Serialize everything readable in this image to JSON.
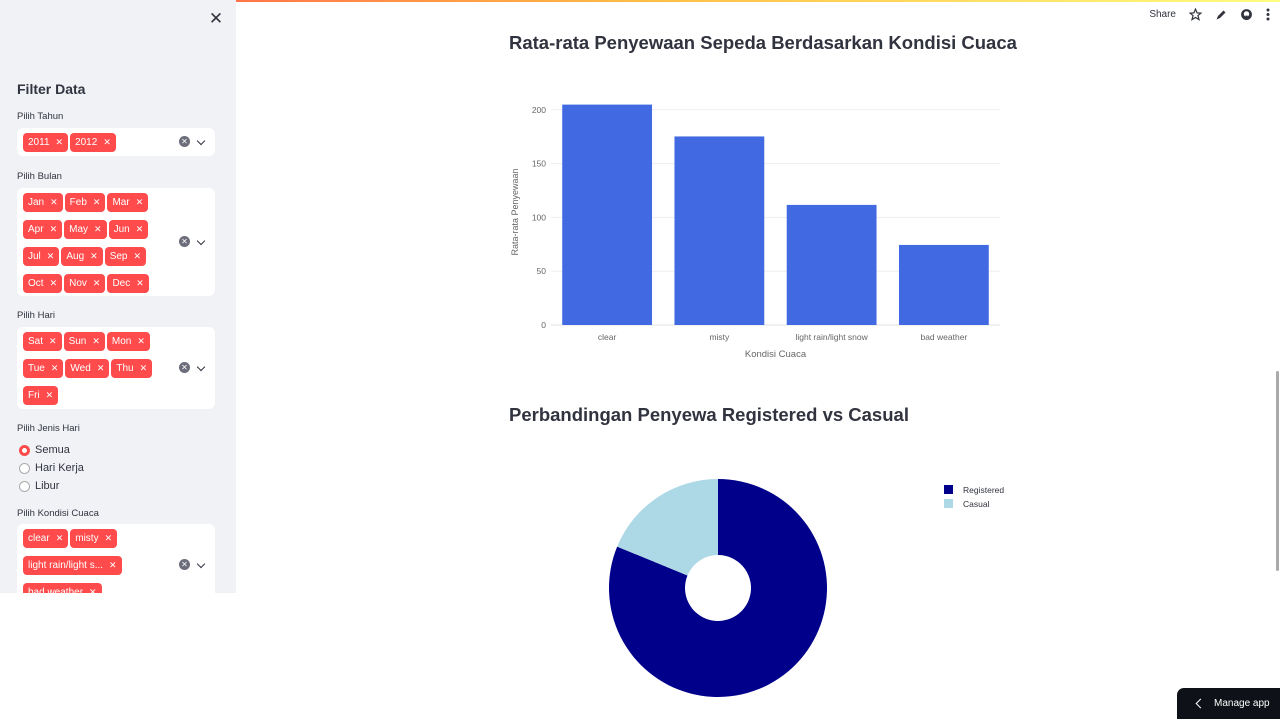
{
  "header": {
    "share_label": "Share"
  },
  "sidebar": {
    "title": "Filter Data",
    "year": {
      "label": "Pilih Tahun",
      "tags": [
        "2011",
        "2012"
      ]
    },
    "month": {
      "label": "Pilih Bulan",
      "tags": [
        "Jan",
        "Feb",
        "Mar",
        "Apr",
        "May",
        "Jun",
        "Jul",
        "Aug",
        "Sep",
        "Oct",
        "Nov",
        "Dec"
      ]
    },
    "day": {
      "label": "Pilih Hari",
      "tags": [
        "Sat",
        "Sun",
        "Mon",
        "Tue",
        "Wed",
        "Thu",
        "Fri"
      ]
    },
    "day_type": {
      "label": "Pilih Jenis Hari",
      "options": [
        "Semua",
        "Hari Kerja",
        "Libur"
      ],
      "selected": "Semua"
    },
    "weather": {
      "label": "Pilih Kondisi Cuaca",
      "tags": [
        "clear",
        "misty",
        "light rain/light s...",
        "bad weather"
      ]
    }
  },
  "main": {
    "bar_title": "Rata-rata Penyewaan Sepeda Berdasarkan Kondisi Cuaca",
    "pie_title": "Perbandingan Penyewa Registered vs Casual"
  },
  "manage_app": "Manage app",
  "colors": {
    "accent": "#ff4b4b",
    "bar": "#4169e1",
    "registered": "#00008b",
    "casual": "#add8e6"
  },
  "chart_data": [
    {
      "type": "bar",
      "title": "",
      "categories": [
        "clear",
        "misty",
        "light rain/light snow",
        "bad weather"
      ],
      "values": [
        204.8,
        175.2,
        111.6,
        74.4
      ],
      "xlabel": "Kondisi Cuaca",
      "ylabel": "Rata-rata Penyewaan",
      "ylim": [
        0,
        210
      ],
      "yticks": [
        0,
        50,
        100,
        150,
        200
      ],
      "grid": true
    },
    {
      "type": "pie",
      "title": "",
      "labels": [
        "Registered",
        "Casual"
      ],
      "values": [
        81.2,
        18.8
      ],
      "hole": true,
      "legend": "top-right"
    }
  ]
}
